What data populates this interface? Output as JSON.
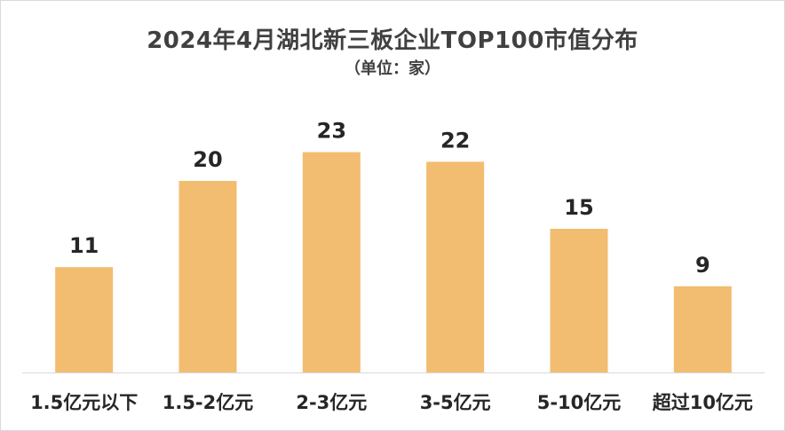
{
  "chart_data": {
    "type": "bar",
    "title": "2024年4月湖北新三板企业TOP100市值分布",
    "subtitle": "（单位：家）",
    "categories": [
      "1.5亿元以下",
      "1.5-2亿元",
      "2-3亿元",
      "3-5亿元",
      "5-10亿元",
      "超过10亿元"
    ],
    "values": [
      11,
      20,
      23,
      22,
      15,
      9
    ],
    "xlabel": "",
    "ylabel": "",
    "ylim": [
      0,
      28
    ],
    "grid": false,
    "legend": "none",
    "bar_color": "#f2bd70",
    "data_labels": true
  }
}
